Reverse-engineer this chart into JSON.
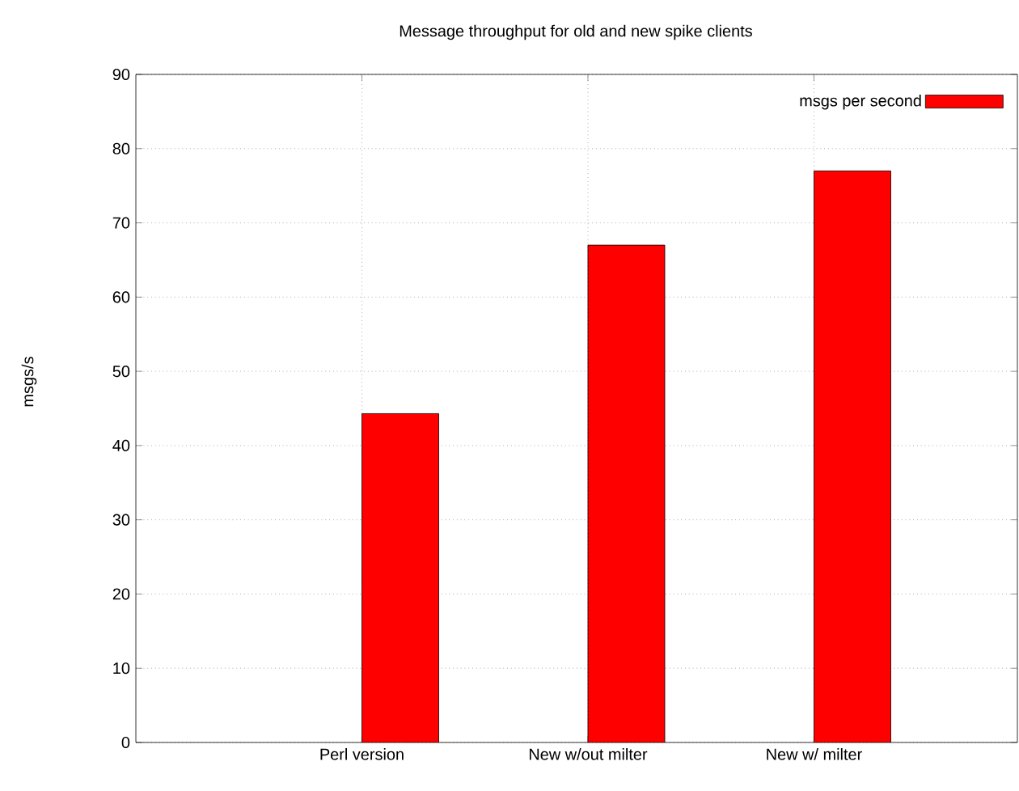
{
  "chart_data": {
    "type": "bar",
    "title": "Message throughput for old and new spike clients",
    "ylabel": "msgs/s",
    "categories": [
      "Perl version",
      "New w/out milter",
      "New w/ milter"
    ],
    "series": [
      {
        "name": "msgs per second",
        "color": "#ff0000",
        "values": [
          44.3,
          67,
          77
        ]
      }
    ],
    "ylim": [
      0,
      90
    ],
    "yticks": [
      0,
      10,
      20,
      30,
      40,
      50,
      60,
      70,
      80,
      90
    ],
    "grid": true,
    "legend": "top right"
  }
}
